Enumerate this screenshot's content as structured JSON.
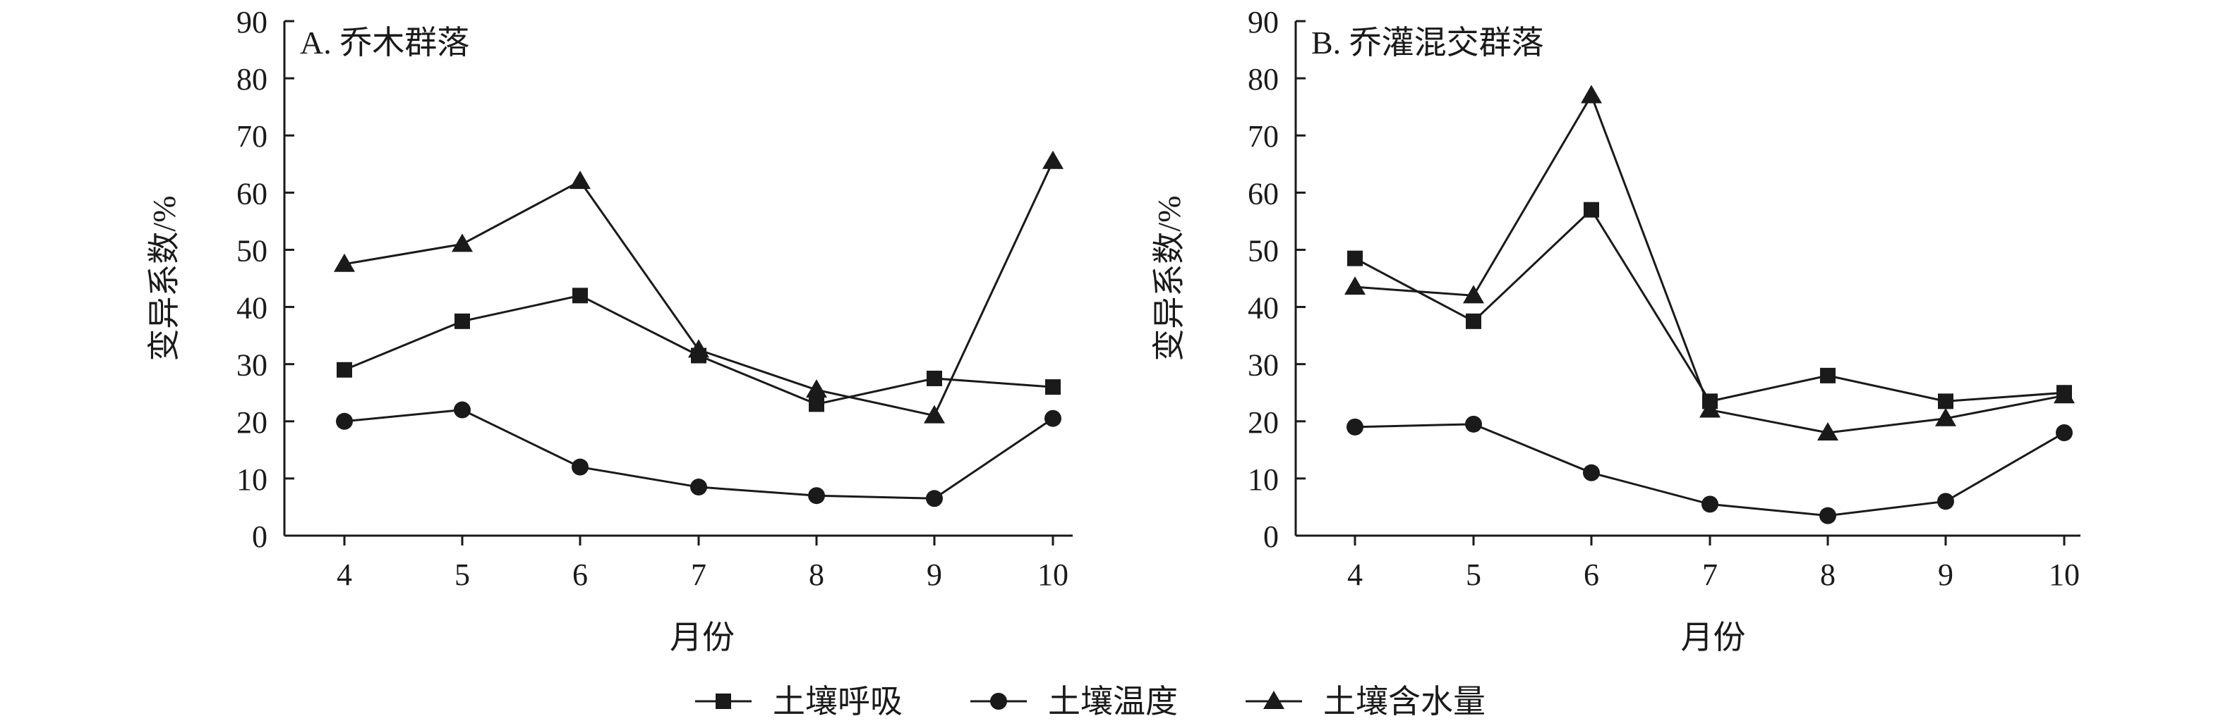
{
  "chart_data": [
    {
      "type": "line",
      "title": "A. 乔木群落",
      "xlabel": "月份",
      "ylabel": "变异系数/%",
      "categories": [
        "4",
        "5",
        "6",
        "7",
        "8",
        "9",
        "10"
      ],
      "ylim": [
        0,
        90
      ],
      "yticks": [
        "0",
        "10",
        "20",
        "30",
        "40",
        "50",
        "60",
        "70",
        "80",
        "90"
      ],
      "grid": false,
      "series": [
        {
          "name": "土壤呼吸",
          "marker": "square",
          "values": [
            29,
            37.5,
            42,
            31.5,
            23,
            27.5,
            26
          ]
        },
        {
          "name": "土壤温度",
          "marker": "circle",
          "values": [
            20,
            22,
            12,
            8.5,
            7,
            6.5,
            20.5
          ]
        },
        {
          "name": "土壤含水量",
          "marker": "triangle",
          "values": [
            47.5,
            51,
            62,
            32.5,
            25.5,
            21,
            65.5
          ]
        }
      ]
    },
    {
      "type": "line",
      "title": "B. 乔灌混交群落",
      "xlabel": "月份",
      "ylabel": "变异系数/%",
      "categories": [
        "4",
        "5",
        "6",
        "7",
        "8",
        "9",
        "10"
      ],
      "ylim": [
        0,
        90
      ],
      "yticks": [
        "0",
        "10",
        "20",
        "30",
        "40",
        "50",
        "60",
        "70",
        "80",
        "90"
      ],
      "grid": false,
      "series": [
        {
          "name": "土壤呼吸",
          "marker": "square",
          "values": [
            48.5,
            37.5,
            57,
            23.5,
            28,
            23.5,
            25
          ]
        },
        {
          "name": "土壤温度",
          "marker": "circle",
          "values": [
            19,
            19.5,
            11,
            5.5,
            3.5,
            6,
            18
          ]
        },
        {
          "name": "土壤含水量",
          "marker": "triangle",
          "values": [
            43.5,
            42,
            77,
            22,
            18,
            20.5,
            24.5
          ]
        }
      ]
    }
  ],
  "legend": {
    "placement": "bottom-center",
    "items": [
      {
        "label": "土壤呼吸",
        "marker": "square"
      },
      {
        "label": "土壤温度",
        "marker": "circle"
      },
      {
        "label": "土壤含水量",
        "marker": "triangle"
      }
    ]
  },
  "colors": {
    "ink": "#1a1a1a",
    "background": "#ffffff"
  }
}
